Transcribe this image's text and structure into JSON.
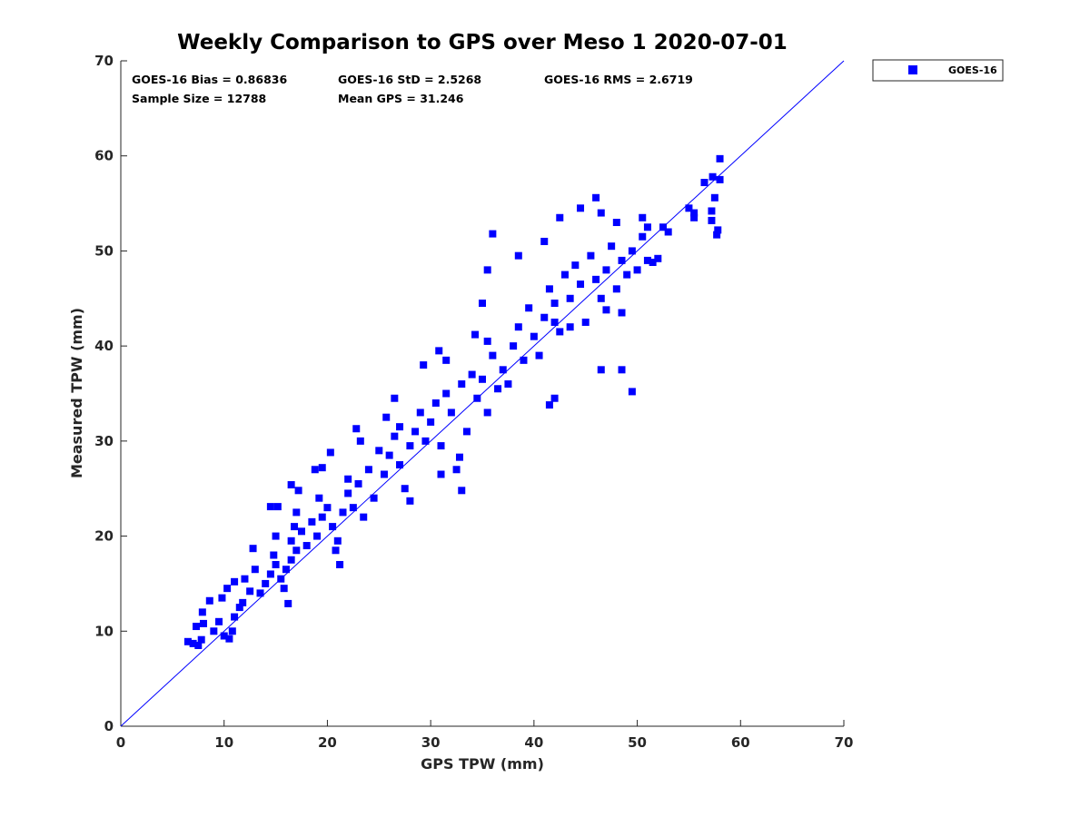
{
  "chart_data": {
    "type": "scatter",
    "title": "Weekly Comparison to GPS over Meso 1 2020-07-01",
    "xlabel": "GPS TPW (mm)",
    "ylabel": "Measured TPW (mm)",
    "xlim": [
      0,
      70
    ],
    "ylim": [
      0,
      70
    ],
    "xticks": [
      "0",
      "10",
      "20",
      "30",
      "40",
      "50",
      "60",
      "70"
    ],
    "yticks": [
      "0",
      "10",
      "20",
      "30",
      "40",
      "50",
      "60",
      "70"
    ],
    "grid": false,
    "legend_position": "outside-top-right",
    "reference_line": {
      "from": [
        0,
        0
      ],
      "to": [
        70,
        70
      ]
    },
    "stats": {
      "bias": "GOES-16 Bias = 0.86836",
      "std": "GOES-16 StD = 2.5268",
      "rms": "GOES-16 RMS = 2.6719",
      "sample_size": "Sample Size = 12788",
      "mean_gps": "Mean GPS = 31.246"
    },
    "series": [
      {
        "name": "GOES-16",
        "color": "#0000ff",
        "marker": "square",
        "points": [
          [
            6.5,
            8.9
          ],
          [
            7.0,
            8.7
          ],
          [
            7.5,
            8.5
          ],
          [
            7.8,
            9.1
          ],
          [
            7.3,
            10.5
          ],
          [
            8.0,
            10.8
          ],
          [
            8.6,
            13.2
          ],
          [
            7.9,
            12.0
          ],
          [
            9.0,
            10.0
          ],
          [
            9.5,
            11.0
          ],
          [
            10.0,
            9.5
          ],
          [
            10.5,
            9.2
          ],
          [
            10.8,
            10.0
          ],
          [
            11.0,
            11.5
          ],
          [
            11.5,
            12.5
          ],
          [
            9.8,
            13.5
          ],
          [
            10.3,
            14.5
          ],
          [
            11.0,
            15.2
          ],
          [
            11.8,
            13.0
          ],
          [
            12.5,
            14.2
          ],
          [
            12.0,
            15.5
          ],
          [
            13.0,
            16.5
          ],
          [
            13.5,
            14.0
          ],
          [
            14.0,
            15.0
          ],
          [
            14.5,
            16.0
          ],
          [
            15.0,
            17.0
          ],
          [
            15.5,
            15.5
          ],
          [
            16.0,
            16.5
          ],
          [
            16.5,
            17.5
          ],
          [
            16.2,
            12.9
          ],
          [
            15.8,
            14.5
          ],
          [
            14.8,
            18.0
          ],
          [
            12.8,
            18.7
          ],
          [
            14.5,
            23.1
          ],
          [
            15.2,
            23.1
          ],
          [
            15.0,
            20.0
          ],
          [
            16.5,
            19.5
          ],
          [
            17.0,
            18.5
          ],
          [
            17.5,
            20.5
          ],
          [
            18.0,
            19.0
          ],
          [
            16.8,
            21.0
          ],
          [
            17.0,
            22.5
          ],
          [
            17.2,
            24.8
          ],
          [
            16.5,
            25.4
          ],
          [
            18.5,
            21.5
          ],
          [
            19.0,
            20.0
          ],
          [
            19.5,
            22.0
          ],
          [
            19.2,
            24.0
          ],
          [
            18.8,
            27.0
          ],
          [
            19.5,
            27.2
          ],
          [
            20.3,
            28.8
          ],
          [
            20.0,
            23.0
          ],
          [
            20.5,
            21.0
          ],
          [
            21.0,
            19.5
          ],
          [
            21.5,
            22.5
          ],
          [
            22.0,
            24.5
          ],
          [
            22.5,
            23.0
          ],
          [
            21.2,
            17.0
          ],
          [
            20.8,
            18.5
          ],
          [
            22.0,
            26.0
          ],
          [
            23.0,
            25.5
          ],
          [
            23.5,
            22.0
          ],
          [
            24.0,
            27.0
          ],
          [
            24.5,
            24.0
          ],
          [
            22.8,
            31.3
          ],
          [
            23.2,
            30.0
          ],
          [
            25.0,
            29.0
          ],
          [
            25.5,
            26.5
          ],
          [
            26.0,
            28.5
          ],
          [
            26.5,
            30.5
          ],
          [
            27.0,
            27.5
          ],
          [
            25.7,
            32.5
          ],
          [
            26.5,
            34.5
          ],
          [
            27.0,
            31.5
          ],
          [
            28.0,
            29.5
          ],
          [
            28.5,
            31.0
          ],
          [
            27.5,
            25.0
          ],
          [
            28.0,
            23.7
          ],
          [
            29.0,
            33.0
          ],
          [
            29.5,
            30.0
          ],
          [
            30.0,
            32.0
          ],
          [
            29.3,
            38.0
          ],
          [
            30.5,
            34.0
          ],
          [
            31.0,
            29.5
          ],
          [
            31.5,
            35.0
          ],
          [
            32.0,
            33.0
          ],
          [
            31.0,
            26.5
          ],
          [
            32.5,
            27.0
          ],
          [
            32.8,
            28.3
          ],
          [
            33.0,
            24.8
          ],
          [
            33.0,
            36.0
          ],
          [
            33.5,
            31.0
          ],
          [
            34.0,
            37.0
          ],
          [
            34.5,
            34.5
          ],
          [
            35.0,
            36.5
          ],
          [
            35.5,
            33.0
          ],
          [
            36.0,
            39.0
          ],
          [
            36.5,
            35.5
          ],
          [
            34.3,
            41.2
          ],
          [
            35.0,
            44.5
          ],
          [
            35.5,
            40.5
          ],
          [
            37.0,
            37.5
          ],
          [
            37.5,
            36.0
          ],
          [
            38.0,
            40.0
          ],
          [
            38.5,
            42.0
          ],
          [
            39.0,
            38.5
          ],
          [
            39.5,
            44.0
          ],
          [
            40.0,
            41.0
          ],
          [
            40.5,
            39.0
          ],
          [
            41.0,
            43.0
          ],
          [
            41.5,
            46.0
          ],
          [
            42.0,
            44.5
          ],
          [
            42.5,
            41.5
          ],
          [
            43.0,
            47.5
          ],
          [
            43.5,
            45.0
          ],
          [
            44.0,
            48.5
          ],
          [
            44.5,
            46.5
          ],
          [
            45.0,
            42.5
          ],
          [
            45.5,
            49.5
          ],
          [
            46.0,
            47.0
          ],
          [
            46.5,
            45.0
          ],
          [
            47.0,
            48.0
          ],
          [
            47.5,
            50.5
          ],
          [
            48.0,
            46.0
          ],
          [
            48.5,
            49.0
          ],
          [
            49.0,
            47.5
          ],
          [
            49.5,
            50.0
          ],
          [
            50.0,
            48.0
          ],
          [
            50.5,
            51.5
          ],
          [
            51.0,
            49.0
          ],
          [
            51.5,
            48.8
          ],
          [
            52.0,
            49.2
          ],
          [
            52.5,
            52.5
          ],
          [
            53.0,
            52.0
          ],
          [
            49.5,
            35.2
          ],
          [
            48.5,
            37.5
          ],
          [
            46.5,
            37.5
          ],
          [
            42.0,
            42.5
          ],
          [
            46.0,
            55.6
          ],
          [
            44.5,
            54.5
          ],
          [
            46.5,
            54.0
          ],
          [
            48.0,
            53.0
          ],
          [
            50.5,
            53.5
          ],
          [
            51.0,
            52.5
          ],
          [
            42.5,
            53.5
          ],
          [
            41.0,
            51.0
          ],
          [
            36.0,
            51.8
          ],
          [
            35.5,
            48.0
          ],
          [
            38.5,
            49.5
          ],
          [
            30.8,
            39.5
          ],
          [
            31.5,
            38.5
          ],
          [
            42.0,
            34.5
          ],
          [
            41.5,
            33.8
          ],
          [
            48.5,
            43.5
          ],
          [
            47.0,
            43.8
          ],
          [
            43.5,
            42.0
          ],
          [
            55.5,
            54.0
          ],
          [
            55.5,
            53.5
          ],
          [
            56.5,
            57.2
          ],
          [
            57.2,
            54.2
          ],
          [
            57.2,
            53.2
          ],
          [
            57.5,
            55.6
          ],
          [
            57.8,
            52.2
          ],
          [
            57.7,
            51.7
          ],
          [
            58.0,
            59.7
          ],
          [
            58.0,
            57.5
          ],
          [
            57.3,
            57.8
          ],
          [
            55.0,
            54.5
          ]
        ]
      }
    ]
  }
}
